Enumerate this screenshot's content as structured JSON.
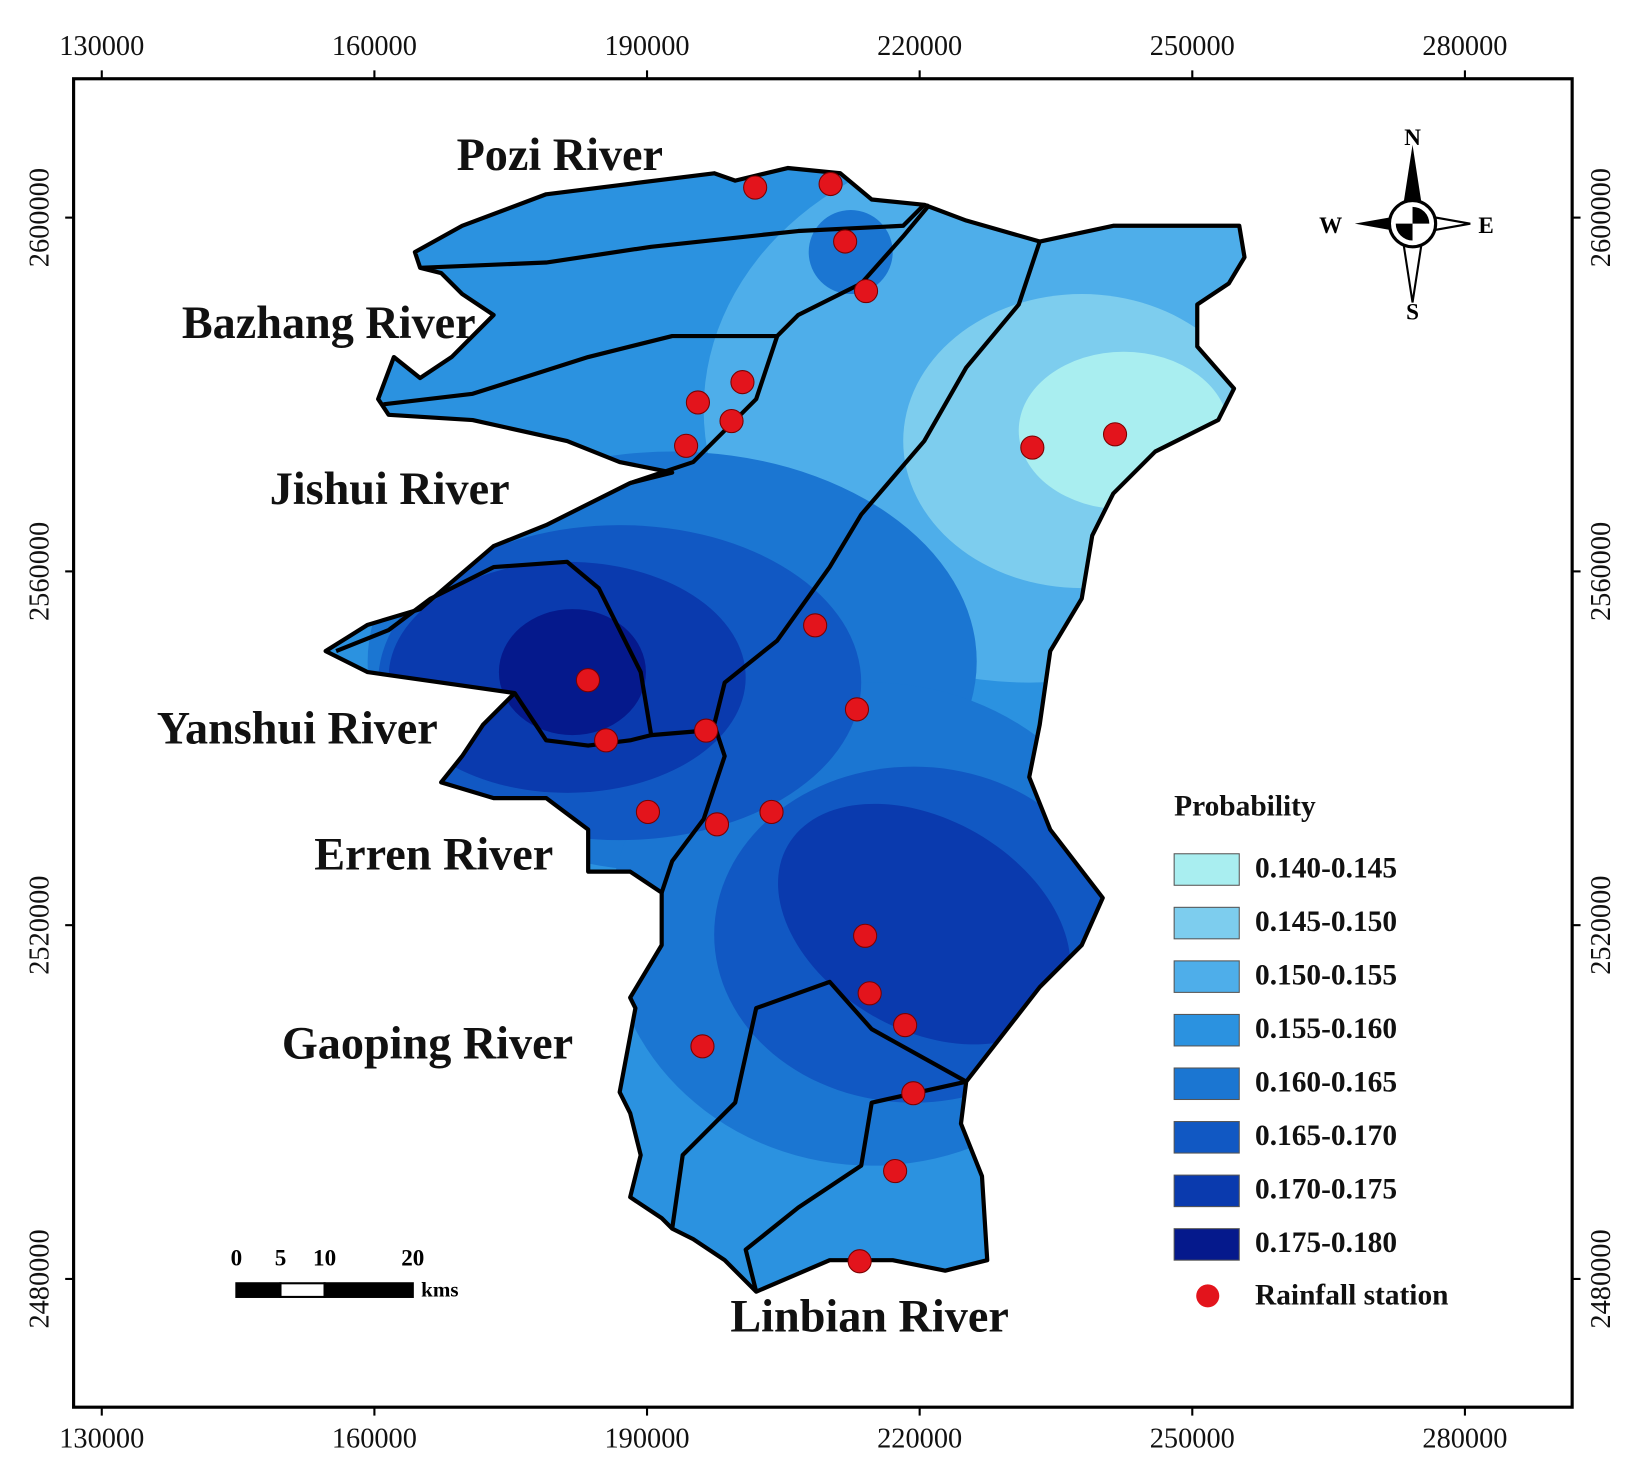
{
  "chart_data": {
    "type": "map",
    "xlim": [
      126900,
      291800
    ],
    "ylim": [
      2465500,
      2615700
    ],
    "xticks": [
      130000,
      160000,
      190000,
      220000,
      250000,
      280000
    ],
    "yticks": [
      2480000,
      2520000,
      2560000,
      2600000
    ],
    "rivers": [
      "Pozi River",
      "Bazhang River",
      "Jishui River",
      "Yanshui River",
      "Erren River",
      "Gaoping River",
      "Linbian River"
    ],
    "legend_title": "Probability",
    "classes": [
      {
        "label": "0.140-0.145",
        "color": "#a9eef0"
      },
      {
        "label": "0.145-0.150",
        "color": "#7dcdee"
      },
      {
        "label": "0.150-0.155",
        "color": "#4eaeea"
      },
      {
        "label": "0.155-0.160",
        "color": "#2b92e0"
      },
      {
        "label": "0.160-0.165",
        "color": "#1b76d2"
      },
      {
        "label": "0.165-0.170",
        "color": "#1158c3"
      },
      {
        "label": "0.170-0.175",
        "color": "#0a3aae"
      },
      {
        "label": "0.175-0.180",
        "color": "#05198c"
      }
    ],
    "stations": {
      "name": "Rainfall station",
      "color": "#e3141c",
      "x": [
        201900,
        210200,
        211800,
        214100,
        200500,
        195600,
        199300,
        194300,
        232400,
        241500,
        208500,
        183500,
        213100,
        196500,
        185500,
        190100,
        197700,
        203700,
        214000,
        214500,
        218400,
        196100,
        219300,
        217300,
        213400
      ],
      "y": [
        2603400,
        2603800,
        2597300,
        2591700,
        2581400,
        2579100,
        2577000,
        2574200,
        2574000,
        2575500,
        2553900,
        2547700,
        2544400,
        2542000,
        2540900,
        2532800,
        2531400,
        2532800,
        2518800,
        2512300,
        2508700,
        2506300,
        2501000,
        2492200,
        2482000
      ]
    },
    "compass": {
      "north": "N",
      "south": "S",
      "east": "E",
      "west": "W"
    },
    "scale_bar": {
      "ticks": [
        0,
        5,
        10,
        20
      ],
      "unit": "kms"
    }
  }
}
